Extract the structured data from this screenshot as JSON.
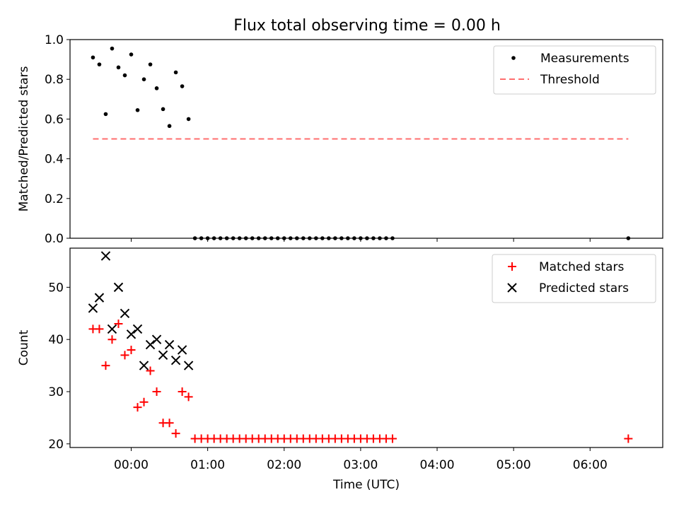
{
  "figure_title": "Flux total observing time = 0.00 h",
  "colors": {
    "measure": "#000000",
    "threshold": "#ff6e6e",
    "matched": "#ff0000",
    "predicted": "#000000"
  },
  "chart_data": [
    {
      "type": "scatter",
      "ylabel": "Matched/Predicted stars",
      "ylim": [
        0,
        1
      ],
      "yticks": [
        "0.0",
        "0.2",
        "0.4",
        "0.6",
        "0.8",
        "1.0"
      ],
      "yticks_values": [
        0,
        0.2,
        0.4,
        0.6,
        0.8,
        1.0
      ],
      "xlim": [
        "-00:48",
        "06:57"
      ],
      "legend": {
        "position": "top-right",
        "entries": [
          "Measurements",
          "Threshold"
        ]
      },
      "series": [
        {
          "name": "Measurements",
          "marker": "dot",
          "x": [
            "-00:30",
            "-00:25",
            "-00:20",
            "-00:15",
            "-00:10",
            "-00:05",
            "00:00",
            "00:05",
            "00:10",
            "00:15",
            "00:20",
            "00:25",
            "00:30",
            "00:35",
            "00:40",
            "00:45",
            "00:50",
            "00:55",
            "01:00",
            "01:05",
            "01:10",
            "01:15",
            "01:20",
            "01:25",
            "01:30",
            "01:35",
            "01:40",
            "01:45",
            "01:50",
            "01:55",
            "02:00",
            "02:05",
            "02:10",
            "02:15",
            "02:20",
            "02:25",
            "02:30",
            "02:35",
            "02:40",
            "02:45",
            "02:50",
            "02:55",
            "03:00",
            "03:05",
            "03:10",
            "03:15",
            "03:20",
            "03:25",
            "06:30"
          ],
          "y": [
            0.91,
            0.875,
            0.625,
            0.955,
            0.86,
            0.82,
            0.925,
            0.645,
            0.8,
            0.875,
            0.755,
            0.65,
            0.565,
            0.835,
            0.765,
            0.6,
            0,
            0,
            0,
            0,
            0,
            0,
            0,
            0,
            0,
            0,
            0,
            0,
            0,
            0,
            0,
            0,
            0,
            0,
            0,
            0,
            0,
            0,
            0,
            0,
            0,
            0,
            0,
            0,
            0,
            0,
            0,
            0,
            0
          ]
        },
        {
          "name": "Threshold",
          "style": "dashed",
          "x": [
            "-00:30",
            "06:30"
          ],
          "y": [
            0.5,
            0.5
          ]
        }
      ]
    },
    {
      "type": "scatter",
      "xlabel": "Time (UTC)",
      "ylabel": "Count",
      "ylim": [
        19.3,
        57.5
      ],
      "yticks": [
        "20",
        "30",
        "40",
        "50"
      ],
      "yticks_values": [
        20,
        30,
        40,
        50
      ],
      "xlim": [
        "-00:48",
        "06:57"
      ],
      "xticks": [
        "00:00",
        "01:00",
        "02:00",
        "03:00",
        "04:00",
        "05:00",
        "06:00"
      ],
      "legend": {
        "position": "top-right",
        "entries": [
          "Matched stars",
          "Predicted stars"
        ]
      },
      "series": [
        {
          "name": "Matched stars",
          "marker": "plus",
          "x": [
            "-00:30",
            "-00:25",
            "-00:20",
            "-00:15",
            "-00:10",
            "-00:05",
            "00:00",
            "00:05",
            "00:10",
            "00:15",
            "00:20",
            "00:25",
            "00:30",
            "00:35",
            "00:40",
            "00:45",
            "00:50",
            "00:55",
            "01:00",
            "01:05",
            "01:10",
            "01:15",
            "01:20",
            "01:25",
            "01:30",
            "01:35",
            "01:40",
            "01:45",
            "01:50",
            "01:55",
            "02:00",
            "02:05",
            "02:10",
            "02:15",
            "02:20",
            "02:25",
            "02:30",
            "02:35",
            "02:40",
            "02:45",
            "02:50",
            "02:55",
            "03:00",
            "03:05",
            "03:10",
            "03:15",
            "03:20",
            "03:25",
            "06:30"
          ],
          "y": [
            42,
            42,
            35,
            40,
            43,
            37,
            38,
            27,
            28,
            34,
            30,
            24,
            24,
            22,
            30,
            29,
            21,
            21,
            21,
            21,
            21,
            21,
            21,
            21,
            21,
            21,
            21,
            21,
            21,
            21,
            21,
            21,
            21,
            21,
            21,
            21,
            21,
            21,
            21,
            21,
            21,
            21,
            21,
            21,
            21,
            21,
            21,
            21,
            21
          ]
        },
        {
          "name": "Predicted stars",
          "marker": "x",
          "x": [
            "-00:30",
            "-00:25",
            "-00:20",
            "-00:15",
            "-00:10",
            "-00:05",
            "00:00",
            "00:05",
            "00:10",
            "00:15",
            "00:20",
            "00:25",
            "00:30",
            "00:35",
            "00:40",
            "00:45"
          ],
          "y": [
            46,
            48,
            56,
            42,
            50,
            45,
            41,
            42,
            35,
            39,
            40,
            37,
            39,
            36,
            38,
            35
          ]
        }
      ]
    }
  ]
}
